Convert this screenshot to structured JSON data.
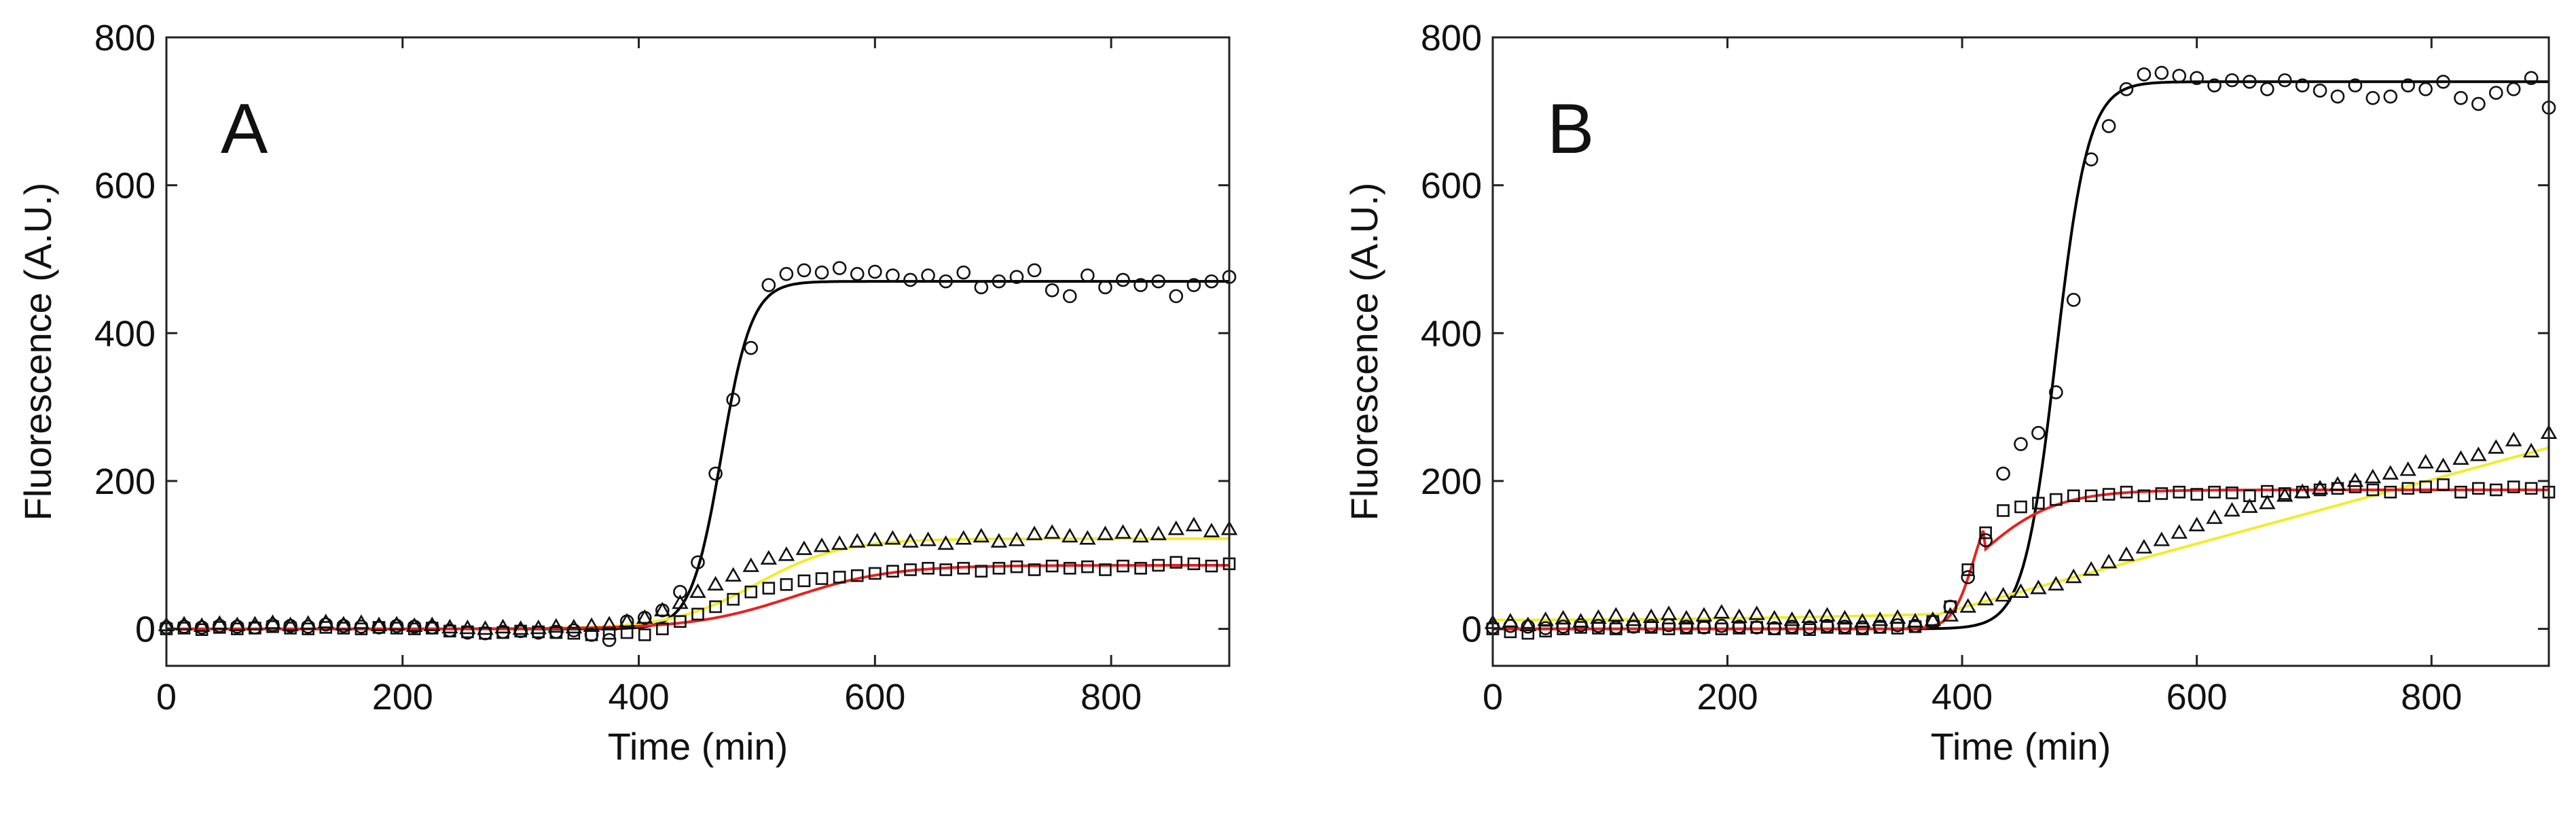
{
  "chart_data": [
    {
      "type": "scatter",
      "panel_label": "A",
      "xlabel": "Time (min)",
      "ylabel": "Fluorescence (A.U.)",
      "xlim": [
        0,
        900
      ],
      "ylim": [
        -50,
        800
      ],
      "xticks": [
        0,
        200,
        400,
        600,
        800
      ],
      "yticks": [
        0,
        200,
        400,
        600,
        800
      ],
      "grid": false,
      "series": [
        {
          "name": "circles",
          "marker": "circle",
          "x": [
            0,
            15,
            30,
            45,
            60,
            75,
            90,
            105,
            120,
            135,
            150,
            165,
            180,
            195,
            210,
            225,
            240,
            255,
            270,
            285,
            300,
            315,
            330,
            345,
            360,
            375,
            390,
            405,
            420,
            435,
            450,
            465,
            480,
            495,
            510,
            525,
            540,
            555,
            570,
            585,
            600,
            615,
            630,
            645,
            660,
            675,
            690,
            705,
            720,
            735,
            750,
            765,
            780,
            795,
            810,
            825,
            840,
            855,
            870,
            885,
            900
          ],
          "y": [
            2,
            3,
            2,
            4,
            3,
            2,
            5,
            4,
            3,
            6,
            4,
            3,
            2,
            4,
            3,
            2,
            -2,
            -5,
            -6,
            -4,
            -3,
            -5,
            -4,
            -2,
            -8,
            -15,
            10,
            15,
            25,
            50,
            90,
            210,
            310,
            380,
            465,
            480,
            485,
            482,
            488,
            480,
            483,
            478,
            472,
            478,
            470,
            482,
            462,
            470,
            476,
            485,
            458,
            450,
            478,
            462,
            472,
            465,
            470,
            450,
            465,
            470,
            476
          ],
          "fit": {
            "color": "#000000",
            "L": 470,
            "k": 0.078,
            "x0": 470,
            "b": 0
          }
        },
        {
          "name": "triangles",
          "marker": "triangle",
          "x": [
            0,
            15,
            30,
            45,
            60,
            75,
            90,
            105,
            120,
            135,
            150,
            165,
            180,
            195,
            210,
            225,
            240,
            255,
            270,
            285,
            300,
            315,
            330,
            345,
            360,
            375,
            390,
            405,
            420,
            435,
            450,
            465,
            480,
            495,
            510,
            525,
            540,
            555,
            570,
            585,
            600,
            615,
            630,
            645,
            660,
            675,
            690,
            705,
            720,
            735,
            750,
            765,
            780,
            795,
            810,
            825,
            840,
            855,
            870,
            885,
            900
          ],
          "y": [
            5,
            6,
            4,
            7,
            5,
            6,
            8,
            5,
            7,
            9,
            6,
            8,
            5,
            6,
            4,
            5,
            2,
            1,
            0,
            2,
            0,
            1,
            3,
            2,
            4,
            6,
            10,
            15,
            25,
            35,
            50,
            60,
            72,
            85,
            95,
            100,
            108,
            112,
            115,
            118,
            120,
            122,
            118,
            120,
            115,
            122,
            125,
            118,
            120,
            128,
            130,
            125,
            122,
            128,
            130,
            125,
            128,
            135,
            140,
            132,
            135
          ],
          "fit": {
            "color": "#f2ec2c",
            "L": 122,
            "k": 0.028,
            "x0": 500,
            "b": 0
          }
        },
        {
          "name": "squares",
          "marker": "square",
          "x": [
            0,
            15,
            30,
            45,
            60,
            75,
            90,
            105,
            120,
            135,
            150,
            165,
            180,
            195,
            210,
            225,
            240,
            255,
            270,
            285,
            300,
            315,
            330,
            345,
            360,
            375,
            390,
            405,
            420,
            435,
            450,
            465,
            480,
            495,
            510,
            525,
            540,
            555,
            570,
            585,
            600,
            615,
            630,
            645,
            660,
            675,
            690,
            705,
            720,
            735,
            750,
            765,
            780,
            795,
            810,
            825,
            840,
            855,
            870,
            885,
            900
          ],
          "y": [
            0,
            1,
            -1,
            2,
            0,
            1,
            3,
            1,
            0,
            2,
            1,
            0,
            2,
            1,
            0,
            1,
            -3,
            -4,
            -6,
            -5,
            -3,
            -4,
            -5,
            -6,
            -8,
            -6,
            -5,
            -8,
            0,
            10,
            20,
            30,
            40,
            50,
            55,
            60,
            65,
            68,
            70,
            72,
            75,
            78,
            80,
            82,
            80,
            82,
            78,
            82,
            84,
            80,
            85,
            82,
            84,
            80,
            85,
            82,
            86,
            90,
            88,
            85,
            88
          ],
          "fit": {
            "color": "#e8221e",
            "L": 86,
            "k": 0.024,
            "x0": 530,
            "b": 0
          }
        }
      ]
    },
    {
      "type": "scatter",
      "panel_label": "B",
      "xlabel": "Time (min)",
      "ylabel": "Fluorescence (A.U.)",
      "xlim": [
        0,
        900
      ],
      "ylim": [
        -50,
        800
      ],
      "xticks": [
        0,
        200,
        400,
        600,
        800
      ],
      "yticks": [
        0,
        200,
        400,
        600,
        800
      ],
      "grid": false,
      "series": [
        {
          "name": "circles",
          "marker": "circle",
          "x": [
            0,
            15,
            30,
            45,
            60,
            75,
            90,
            105,
            120,
            135,
            150,
            165,
            180,
            195,
            210,
            225,
            240,
            255,
            270,
            285,
            300,
            315,
            330,
            345,
            360,
            375,
            390,
            405,
            420,
            435,
            450,
            465,
            480,
            495,
            510,
            525,
            540,
            555,
            570,
            585,
            600,
            615,
            630,
            645,
            660,
            675,
            690,
            705,
            720,
            735,
            750,
            765,
            780,
            795,
            810,
            825,
            840,
            855,
            870,
            885,
            900
          ],
          "y": [
            2,
            4,
            3,
            1,
            3,
            5,
            4,
            2,
            3,
            4,
            5,
            3,
            2,
            4,
            3,
            2,
            1,
            3,
            2,
            4,
            3,
            2,
            3,
            5,
            4,
            10,
            30,
            70,
            120,
            210,
            250,
            265,
            320,
            445,
            635,
            680,
            730,
            750,
            752,
            748,
            745,
            735,
            742,
            740,
            730,
            742,
            735,
            728,
            720,
            735,
            718,
            720,
            735,
            730,
            740,
            718,
            710,
            725,
            730,
            745,
            705
          ],
          "fit": {
            "color": "#000000",
            "L": 740,
            "k": 0.073,
            "x0": 480,
            "b": 0
          }
        },
        {
          "name": "triangles",
          "marker": "triangle",
          "x": [
            0,
            15,
            30,
            45,
            60,
            75,
            90,
            105,
            120,
            135,
            150,
            165,
            180,
            195,
            210,
            225,
            240,
            255,
            270,
            285,
            300,
            315,
            330,
            345,
            360,
            375,
            390,
            405,
            420,
            435,
            450,
            465,
            480,
            495,
            510,
            525,
            540,
            555,
            570,
            585,
            600,
            615,
            630,
            645,
            660,
            675,
            690,
            705,
            720,
            735,
            750,
            765,
            780,
            795,
            810,
            825,
            840,
            855,
            870,
            885,
            900
          ],
          "y": [
            8,
            10,
            5,
            12,
            14,
            10,
            15,
            18,
            12,
            16,
            20,
            14,
            18,
            22,
            16,
            20,
            14,
            12,
            16,
            18,
            14,
            10,
            12,
            15,
            10,
            12,
            18,
            30,
            40,
            45,
            50,
            55,
            60,
            70,
            80,
            90,
            100,
            110,
            120,
            130,
            140,
            150,
            160,
            165,
            170,
            180,
            185,
            190,
            195,
            200,
            205,
            210,
            215,
            225,
            220,
            230,
            235,
            245,
            255,
            240,
            265
          ],
          "fit": {
            "color": "#f2ec2c",
            "piecewise": [
              [
                0,
                12
              ],
              [
                380,
                20
              ],
              [
                900,
                245
              ]
            ]
          }
        },
        {
          "name": "squares",
          "marker": "square",
          "x": [
            0,
            15,
            30,
            45,
            60,
            75,
            90,
            105,
            120,
            135,
            150,
            165,
            180,
            195,
            210,
            225,
            240,
            255,
            270,
            285,
            300,
            315,
            330,
            345,
            360,
            375,
            390,
            405,
            420,
            435,
            450,
            465,
            480,
            495,
            510,
            525,
            540,
            555,
            570,
            585,
            600,
            615,
            630,
            645,
            660,
            675,
            690,
            705,
            720,
            735,
            750,
            765,
            780,
            795,
            810,
            825,
            840,
            855,
            870,
            885,
            900
          ],
          "y": [
            0,
            -4,
            -6,
            -3,
            0,
            2,
            1,
            0,
            3,
            2,
            0,
            1,
            2,
            0,
            1,
            2,
            0,
            1,
            -1,
            2,
            1,
            0,
            2,
            1,
            3,
            10,
            30,
            80,
            130,
            160,
            165,
            170,
            175,
            180,
            180,
            182,
            185,
            180,
            183,
            185,
            182,
            185,
            184,
            180,
            186,
            183,
            185,
            188,
            190,
            192,
            188,
            185,
            190,
            192,
            195,
            185,
            190,
            188,
            192,
            190,
            185
          ],
          "fit": {
            "color": "#e8221e",
            "L": 188,
            "k": 0.03,
            "x0": 410,
            "b": 0,
            "k2": 0.11,
            "split": 420
          }
        }
      ]
    }
  ]
}
